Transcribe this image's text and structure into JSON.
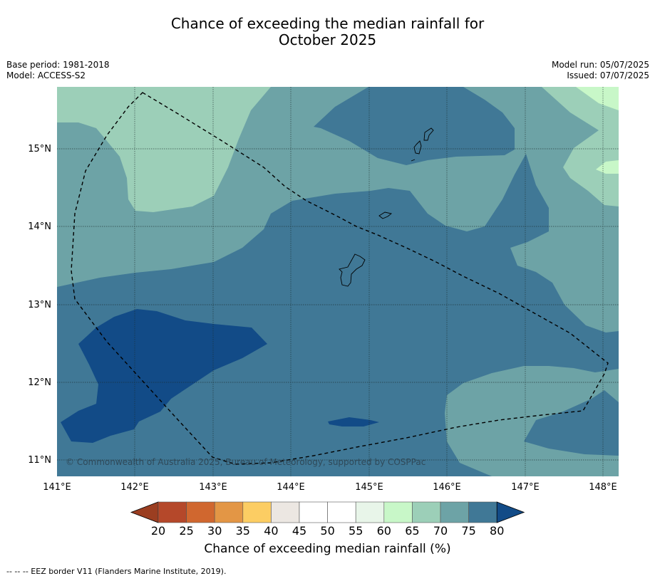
{
  "title_line1": "Chance of exceeding the median rainfall for",
  "title_line2": "October 2025",
  "meta": {
    "base_period": "Base period: 1981-2018",
    "model": "Model: ACCESS-S2",
    "model_run": "Model run: 05/07/2025",
    "issued": "Issued: 07/07/2025"
  },
  "map": {
    "lon_range": [
      141,
      148.2
    ],
    "lat_range": [
      10.8,
      15.8
    ],
    "lon_ticks": [
      "141°E",
      "142°E",
      "143°E",
      "144°E",
      "145°E",
      "146°E",
      "147°E",
      "148°E"
    ],
    "lat_ticks": [
      "15°N",
      "14°N",
      "13°N",
      "12°N",
      "11°N"
    ],
    "copyright": "© Commonwealth of Australia 2025, Bureau of Meteorology, supported by COSPPac"
  },
  "colorbar": {
    "ticks": [
      "20",
      "25",
      "30",
      "35",
      "40",
      "45",
      "50",
      "55",
      "60",
      "65",
      "70",
      "75",
      "80"
    ],
    "colors": [
      "#b5482a",
      "#d0672f",
      "#e39645",
      "#fccd63",
      "#ece7e2",
      "#ffffff",
      "#ffffff",
      "#e8f5e9",
      "#c8f7c8",
      "#9ccfb8",
      "#6da3a6",
      "#407896"
    ],
    "under_color": "#9b3e21",
    "over_color": "#124b87",
    "title": "Chance of exceeding median rainfall (%)"
  },
  "legend_note": "--  --  -- EEZ border V11 (Flanders Marine Institute, 2019)."
}
